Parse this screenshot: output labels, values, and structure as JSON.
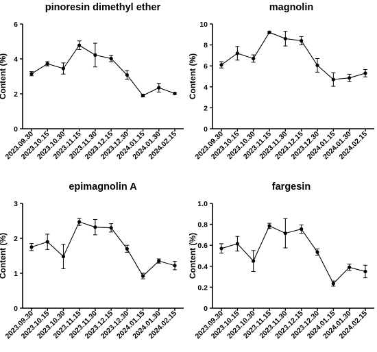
{
  "chart_data": [
    {
      "type": "line",
      "title": "pinoresin dimethyl ether",
      "ylabel": "Content (%)",
      "xlabel": "",
      "ylim": [
        0,
        6
      ],
      "yticks": [
        "0",
        "2",
        "4",
        "6"
      ],
      "categories": [
        "2023.09.30",
        "2023.10.15",
        "2023.10.30",
        "2023.11.15",
        "2023.11.30",
        "2023.12.15",
        "2023.12.30",
        "2024.01.15",
        "2024.01.30",
        "2024.02.15"
      ],
      "values": [
        3.15,
        3.72,
        3.45,
        4.78,
        4.22,
        4.02,
        3.08,
        1.9,
        2.35,
        2.02
      ],
      "errors": [
        0.12,
        0.12,
        0.32,
        0.25,
        0.68,
        0.18,
        0.25,
        0.08,
        0.25,
        0.04
      ]
    },
    {
      "type": "line",
      "title": "magnolin",
      "ylabel": "Content (%)",
      "xlabel": "",
      "ylim": [
        0,
        10
      ],
      "yticks": [
        "0",
        "2",
        "4",
        "6",
        "8",
        "10"
      ],
      "categories": [
        "2023.09.30",
        "2023.10.15",
        "2023.10.30",
        "2023.11.15",
        "2023.11.30",
        "2023.12.15",
        "2023.12.30",
        "2024.01.15",
        "2024.01.30",
        "2024.02.15"
      ],
      "values": [
        6.1,
        7.2,
        6.7,
        9.2,
        8.6,
        8.4,
        6.05,
        4.7,
        4.85,
        5.3
      ],
      "errors": [
        0.3,
        0.65,
        0.35,
        0.08,
        0.7,
        0.4,
        0.65,
        0.65,
        0.35,
        0.35
      ]
    },
    {
      "type": "line",
      "title": "epimagnolin A",
      "ylabel": "Content (%)",
      "xlabel": "",
      "ylim": [
        0,
        3
      ],
      "yticks": [
        "0",
        "1",
        "2",
        "3"
      ],
      "categories": [
        "2023.09.30",
        "2023.10.15",
        "2023.10.30",
        "2023.11.15",
        "2023.11.30",
        "2023.12.15",
        "2023.12.30",
        "2024.01.15",
        "2024.01.30",
        "2024.02.15"
      ],
      "values": [
        1.75,
        1.9,
        1.48,
        2.47,
        2.32,
        2.3,
        1.7,
        0.92,
        1.35,
        1.22
      ],
      "errors": [
        0.1,
        0.22,
        0.35,
        0.1,
        0.22,
        0.12,
        0.1,
        0.08,
        0.06,
        0.12
      ]
    },
    {
      "type": "line",
      "title": "fargesin",
      "ylabel": "Content (%)",
      "xlabel": "",
      "ylim": [
        0,
        1.0
      ],
      "yticks": [
        "0",
        "0.2",
        "0.4",
        "0.6",
        "0.8",
        "1.0"
      ],
      "categories": [
        "2023.09.30",
        "2023.10.15",
        "2023.10.30",
        "2023.11.15",
        "2023.11.30",
        "2023.12.15",
        "2023.12.30",
        "2024.01.15",
        "2024.01.30",
        "2024.02.15"
      ],
      "values": [
        0.57,
        0.615,
        0.45,
        0.785,
        0.715,
        0.755,
        0.535,
        0.235,
        0.39,
        0.35
      ],
      "errors": [
        0.045,
        0.07,
        0.1,
        0.025,
        0.14,
        0.04,
        0.03,
        0.025,
        0.03,
        0.06
      ]
    }
  ]
}
